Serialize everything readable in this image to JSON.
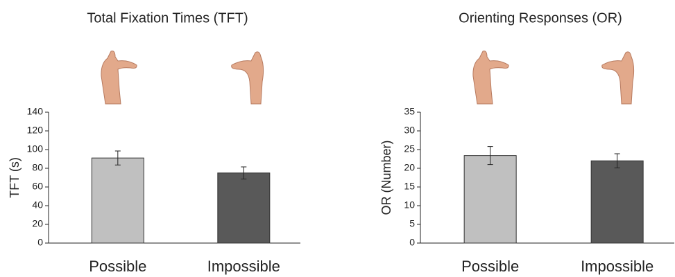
{
  "chart_data": [
    {
      "type": "bar",
      "title": "Total Fixation Times (TFT)",
      "ylabel": "TFT (s)",
      "categories": [
        "Possible",
        "Impossible"
      ],
      "values": [
        91,
        75
      ],
      "errors": [
        7.5,
        6.5
      ],
      "colors": [
        "#c0c0c0",
        "#595959"
      ],
      "ylim": [
        0,
        140
      ],
      "yticks": [
        0,
        20,
        40,
        60,
        80,
        100,
        120,
        140
      ]
    },
    {
      "type": "bar",
      "title": "Orienting Responses (OR)",
      "ylabel": "OR (Number)",
      "categories": [
        "Possible",
        "Impossible"
      ],
      "values": [
        23.4,
        22
      ],
      "errors": [
        2.4,
        1.9
      ],
      "colors": [
        "#c0c0c0",
        "#595959"
      ],
      "ylim": [
        0,
        35
      ],
      "yticks": [
        0,
        5,
        10,
        15,
        20,
        25,
        30,
        35
      ]
    }
  ]
}
